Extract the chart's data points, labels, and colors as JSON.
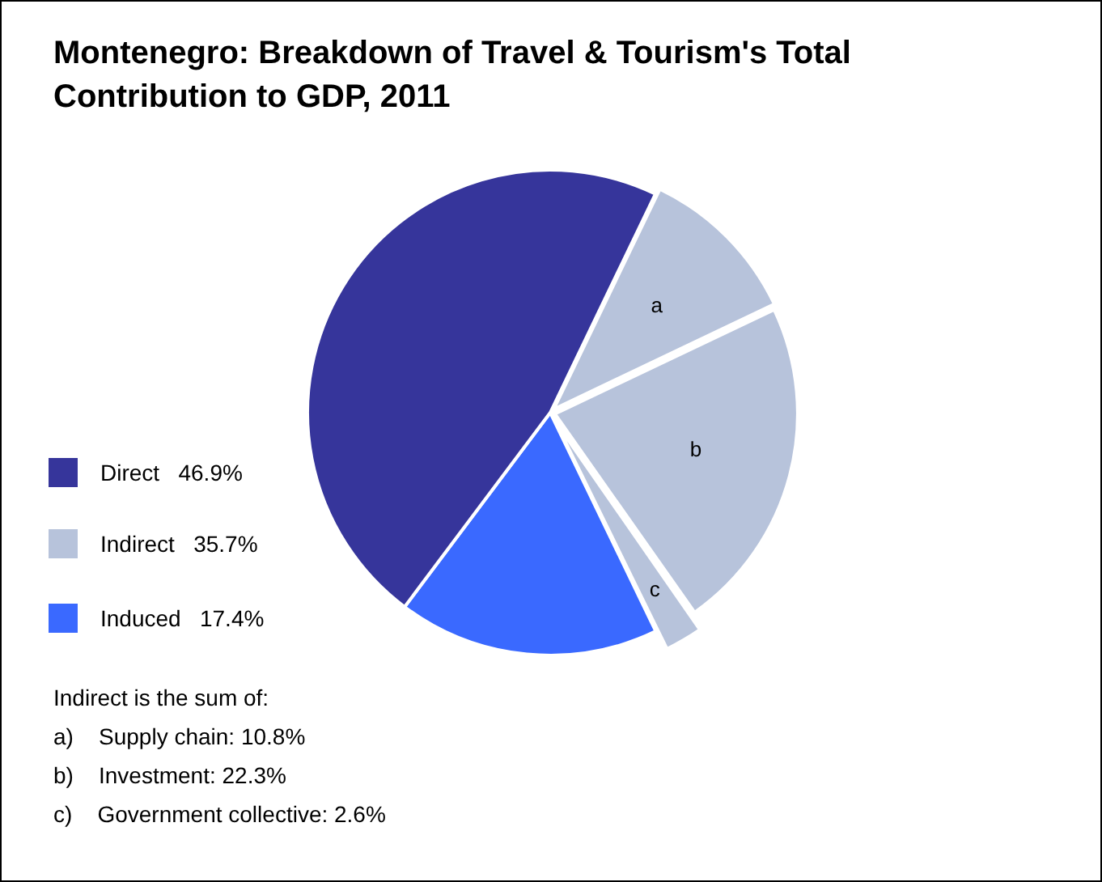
{
  "chart_data": {
    "type": "pie",
    "title": "Montenegro: Breakdown of Travel & Tourism's Total Contribution to GDP, 2011",
    "categories": [
      "a",
      "b",
      "c",
      null,
      null
    ],
    "values": [
      10.8,
      22.3,
      2.6,
      17.4,
      46.9
    ],
    "colors": [
      "#b7c3db",
      "#b7c3db",
      "#b7c3db",
      "#3a69ff",
      "#36359b"
    ],
    "legend": false,
    "annotations": [
      "Direct   46.9%",
      "Indirect   35.7%",
      "Induced   17.4%",
      "Indirect is the sum of:",
      "a)    Supply chain: 10.8%",
      "b)    Investment: 22.3%",
      "c)    Government collective: 2.6%"
    ]
  }
}
